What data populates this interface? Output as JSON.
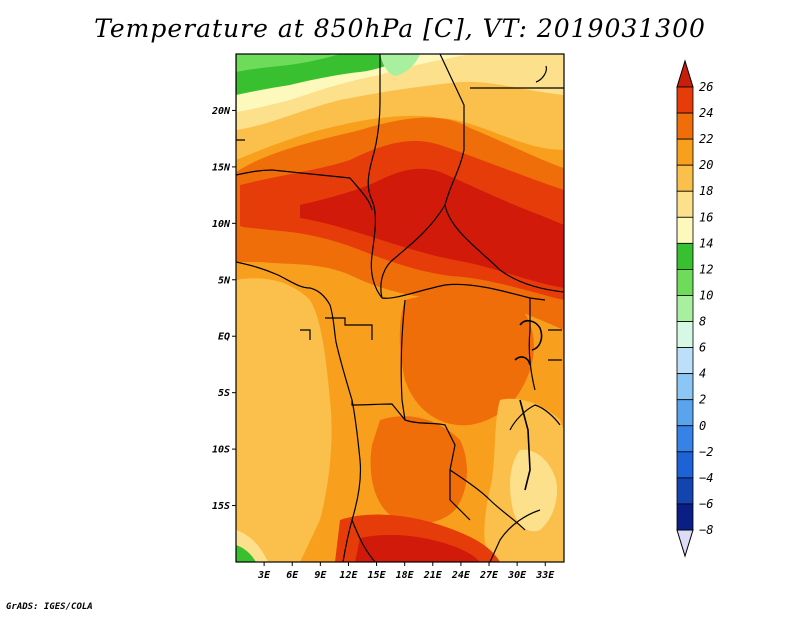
{
  "title": "Temperature at 850hPa [C], VT: 2019031300",
  "credit": "GrADS: IGES/COLA",
  "map": {
    "lon_range": [
      0,
      35
    ],
    "lat_range": [
      -20,
      25
    ],
    "lat_ticks": [
      {
        "value": 20,
        "label": "20N"
      },
      {
        "value": 15,
        "label": "15N"
      },
      {
        "value": 10,
        "label": "10N"
      },
      {
        "value": 5,
        "label": "5N"
      },
      {
        "value": 0,
        "label": "EQ"
      },
      {
        "value": -5,
        "label": "5S"
      },
      {
        "value": -10,
        "label": "10S"
      },
      {
        "value": -15,
        "label": "15S"
      }
    ],
    "lon_ticks": [
      {
        "value": 3,
        "label": "3E"
      },
      {
        "value": 6,
        "label": "6E"
      },
      {
        "value": 9,
        "label": "9E"
      },
      {
        "value": 12,
        "label": "12E"
      },
      {
        "value": 15,
        "label": "15E"
      },
      {
        "value": 18,
        "label": "18E"
      },
      {
        "value": 21,
        "label": "21E"
      },
      {
        "value": 24,
        "label": "24E"
      },
      {
        "value": 27,
        "label": "27E"
      },
      {
        "value": 30,
        "label": "30E"
      },
      {
        "value": 33,
        "label": "33E"
      }
    ]
  },
  "colorbar": {
    "units": "C",
    "levels": [
      {
        "value": "26",
        "color": "#d21a0a"
      },
      {
        "value": "24",
        "color": "#e63c0a"
      },
      {
        "value": "22",
        "color": "#f06e0a"
      },
      {
        "value": "20",
        "color": "#f8a01e"
      },
      {
        "value": "18",
        "color": "#fbc04c"
      },
      {
        "value": "16",
        "color": "#fde08c"
      },
      {
        "value": "14",
        "color": "#fdf8bc"
      },
      {
        "value": "12",
        "color": "#38c030"
      },
      {
        "value": "10",
        "color": "#6edc5a"
      },
      {
        "value": "8",
        "color": "#a8f0a0"
      },
      {
        "value": "6",
        "color": "#d8f8e6"
      },
      {
        "value": "4",
        "color": "#bce0fa"
      },
      {
        "value": "2",
        "color": "#8cc6f4"
      },
      {
        "value": "0",
        "color": "#5aa4ee"
      },
      {
        "value": "−2",
        "color": "#3682e6"
      },
      {
        "value": "−4",
        "color": "#1e62d8"
      },
      {
        "value": "−6",
        "color": "#1444b0"
      },
      {
        "value": "−8",
        "color": "#0a1e86"
      }
    ],
    "top_color": "#c81e0a",
    "bottom_color": "#dcdcf4"
  },
  "colors": {
    "t26": "#d21a0a",
    "t24": "#e63c0a",
    "t22": "#f06e0a",
    "t20": "#f8a01e",
    "t18": "#fbc04c",
    "t16": "#fde08c",
    "t14": "#fdf8bc",
    "t12": "#38c030",
    "t10": "#6edc5a",
    "t8": "#a8f0a0"
  }
}
